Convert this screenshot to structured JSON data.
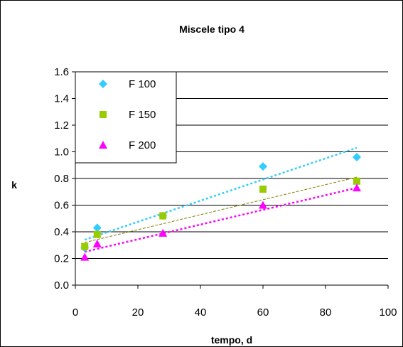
{
  "chart_data": {
    "type": "scatter",
    "title": "Miscele tipo 4",
    "xlabel": "tempo, d",
    "ylabel": "k",
    "xlim": [
      0,
      100
    ],
    "ylim": [
      0.0,
      1.6
    ],
    "xticks": [
      0,
      20,
      40,
      60,
      80,
      100
    ],
    "yticks": [
      0.0,
      0.2,
      0.4,
      0.6,
      0.8,
      1.0,
      1.2,
      1.4,
      1.6
    ],
    "xtick_labels": [
      "0",
      "20",
      "40",
      "60",
      "80",
      "100"
    ],
    "ytick_labels": [
      "0.0",
      "0.2",
      "0.4",
      "0.6",
      "0.8",
      "1.0",
      "1.2",
      "1.4",
      "1.6"
    ],
    "grid": "horizontal",
    "legend_position": "top-left",
    "series": [
      {
        "name": "F 100",
        "color": "#33ccff",
        "marker": "diamond",
        "x": [
          3,
          7,
          28,
          60,
          90
        ],
        "y": [
          0.28,
          0.43,
          0.52,
          0.89,
          0.96
        ],
        "trend": {
          "x": [
            3,
            90
          ],
          "y": [
            0.34,
            1.03
          ]
        }
      },
      {
        "name": "F 150",
        "color": "#99cc00",
        "trend_color": "#808000",
        "marker": "square",
        "x": [
          3,
          7,
          28,
          60,
          90
        ],
        "y": [
          0.29,
          0.38,
          0.52,
          0.72,
          0.78
        ],
        "trend": {
          "x": [
            3,
            90
          ],
          "y": [
            0.32,
            0.81
          ]
        }
      },
      {
        "name": "F 200",
        "color": "#ff00ff",
        "marker": "triangle",
        "x": [
          3,
          7,
          28,
          60,
          90
        ],
        "y": [
          0.21,
          0.31,
          0.39,
          0.6,
          0.73
        ],
        "trend": {
          "x": [
            3,
            90
          ],
          "y": [
            0.25,
            0.73
          ]
        }
      }
    ]
  }
}
